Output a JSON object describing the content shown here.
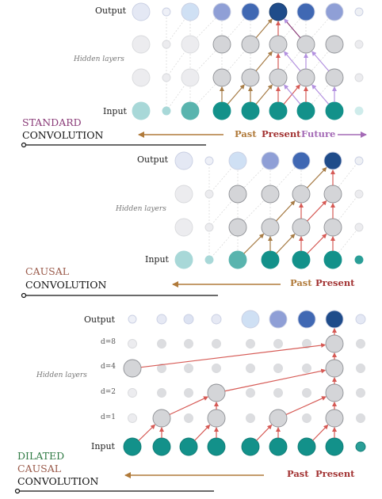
{
  "colors": {
    "teal": "#13918a",
    "grey": "#d4d5d8",
    "arrow_brown": "#a77c46",
    "arrow_red": "#d65a55",
    "arrow_purple": "#b391e0",
    "past": "#b07a3a",
    "present": "#a23232",
    "future": "#a46ab6",
    "standard_title": "#8a3b78",
    "causal_title": "#9a5a4a",
    "dilated_title": "#2f7a44",
    "black": "#111111"
  },
  "panels": [
    {
      "id": "standard",
      "title_lines": [
        {
          "text": "STANDARD",
          "color": "#8a3b78"
        },
        {
          "text": "CONVOLUTION",
          "color": "#111111"
        }
      ],
      "labels": {
        "output": "Output",
        "hidden": "Hidden layers",
        "input": "Input"
      },
      "axis_labels": [
        {
          "text": "Past",
          "color": "#b07a3a"
        },
        {
          "text": "Present",
          "color": "#a23232"
        },
        {
          "text": "Future",
          "color": "#a46ab6"
        }
      ]
    },
    {
      "id": "causal",
      "title_lines": [
        {
          "text": "CAUSAL",
          "color": "#9a5a4a"
        },
        {
          "text": "CONVOLUTION",
          "color": "#111111"
        }
      ],
      "labels": {
        "output": "Output",
        "hidden": "Hidden layers",
        "input": "Input"
      },
      "axis_labels": [
        {
          "text": "Past",
          "color": "#b07a3a"
        },
        {
          "text": "Present",
          "color": "#a23232"
        }
      ]
    },
    {
      "id": "dilated",
      "title_lines": [
        {
          "text": "DILATED",
          "color": "#2f7a44"
        },
        {
          "text": "CAUSAL",
          "color": "#9a5a4a"
        },
        {
          "text": "CONVOLUTION",
          "color": "#111111"
        }
      ],
      "labels": {
        "output": "Output",
        "hidden": "Hidden layers",
        "input": "Input"
      },
      "dilations": [
        "d=8",
        "d=4",
        "d=2",
        "d=1"
      ],
      "axis_labels": [
        {
          "text": "Past",
          "color": "#a23232"
        },
        {
          "text": "Present",
          "color": "#a23232"
        }
      ]
    }
  ]
}
